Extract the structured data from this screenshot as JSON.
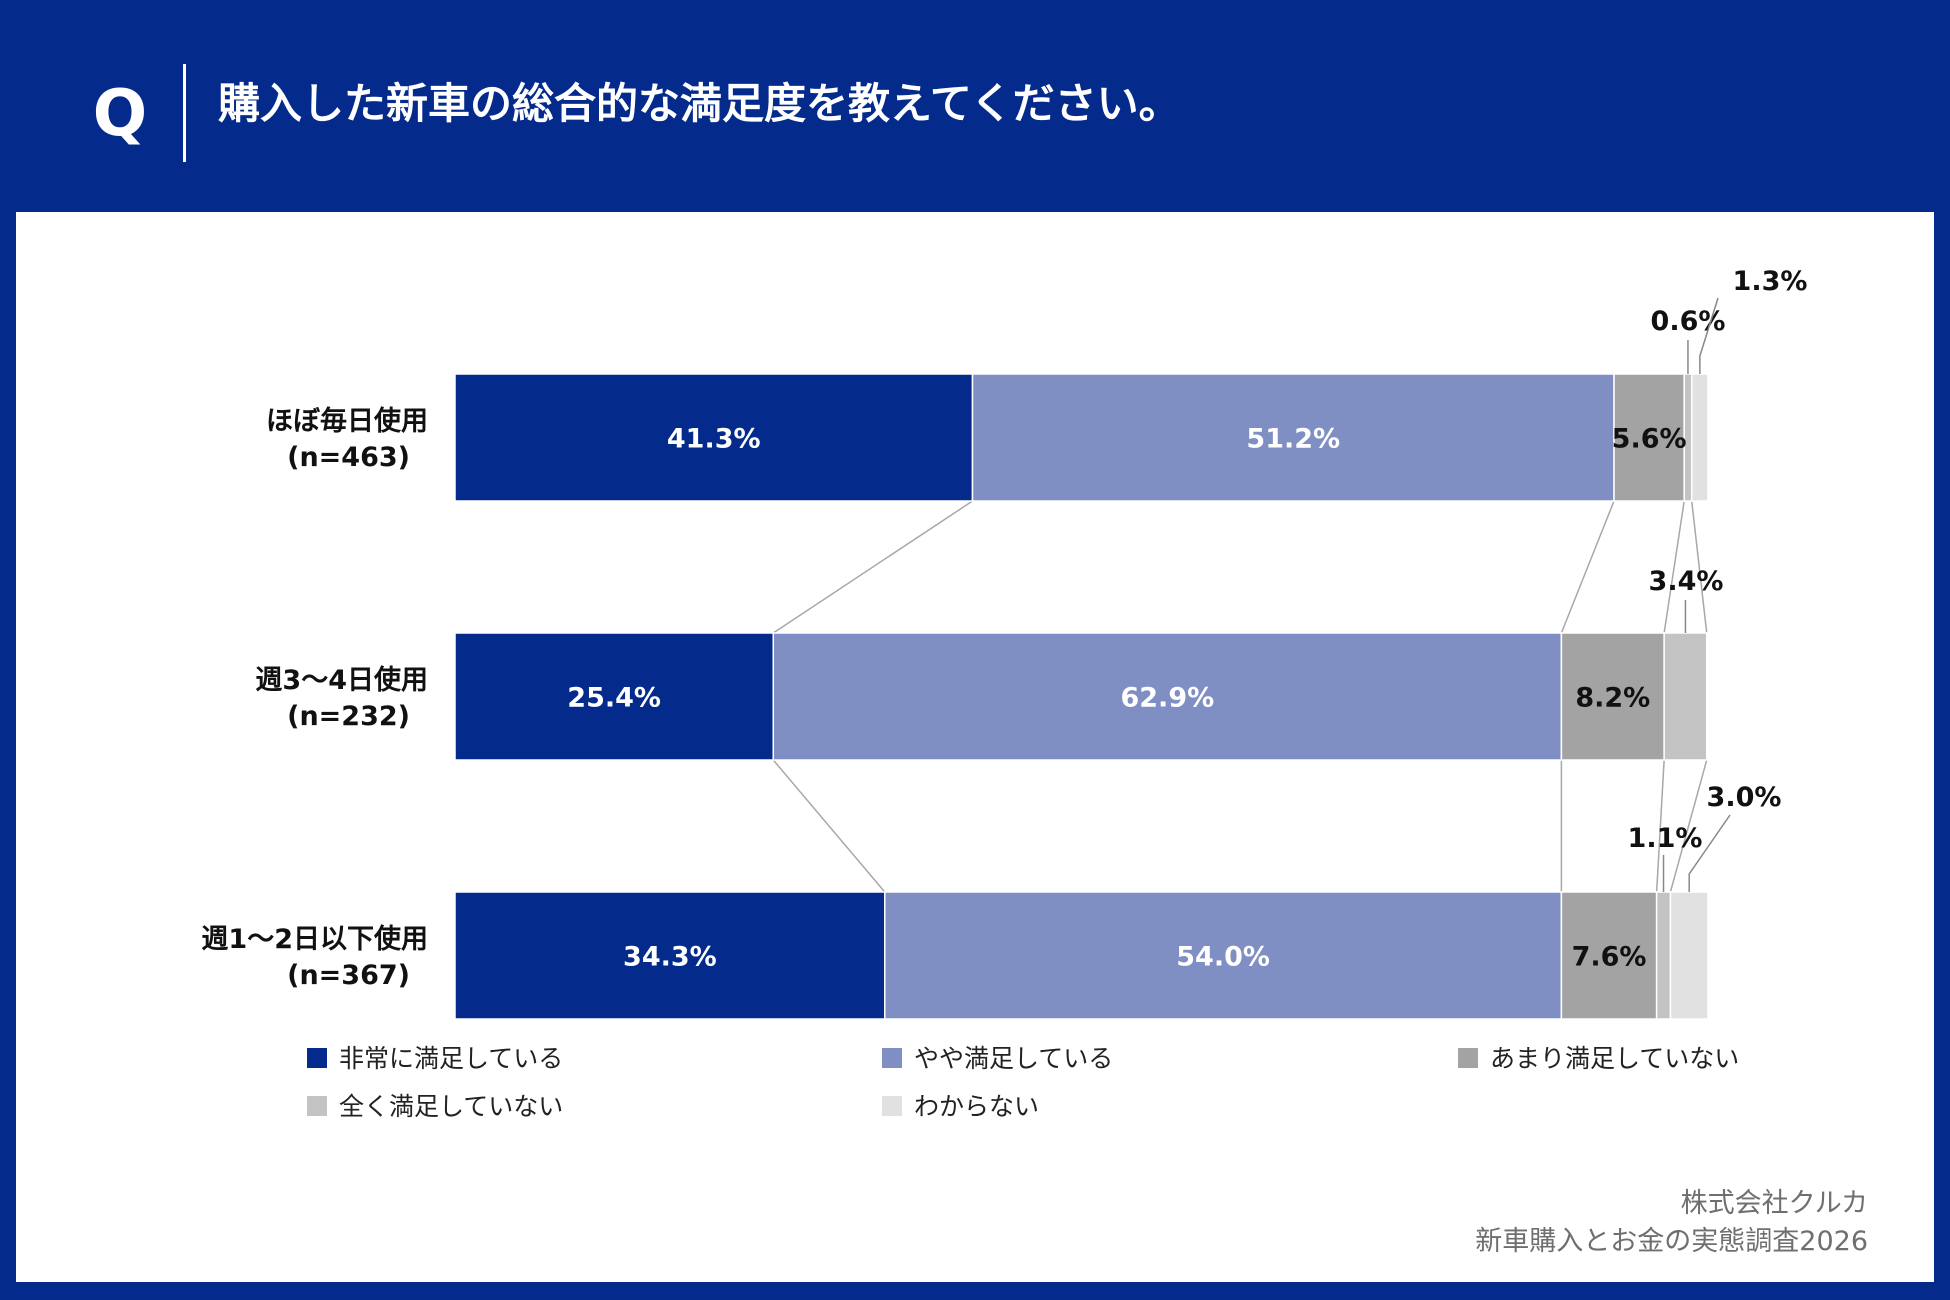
{
  "header": {
    "q_mark": "Q",
    "question": "購入した新車の総合的な満足度を教えてください。"
  },
  "source": {
    "line1": "株式会社クルカ",
    "line2": "新車購入とお金の実態調査2026"
  },
  "colors": {
    "background": "#042b8c",
    "panel": "#ffffff",
    "connector": "#a8a8a8"
  },
  "chart_data": {
    "type": "bar",
    "orientation": "horizontal",
    "stacked": true,
    "normalized": true,
    "categories": [
      {
        "line1": "ほぼ毎日使用",
        "line2": "(n=463)"
      },
      {
        "line1": "週3〜4日使用",
        "line2": "(n=232)"
      },
      {
        "line1": "週1〜2日以下使用",
        "line2": "(n=367)"
      }
    ],
    "series": [
      {
        "name": "非常に満足している",
        "color": "#042b8c",
        "label_color": "#ffffff",
        "values": [
          41.3,
          25.4,
          34.3
        ],
        "labels": [
          "41.3%",
          "25.4%",
          "34.3%"
        ]
      },
      {
        "name": "やや満足している",
        "color": "#7f8fc3",
        "label_color": "#ffffff",
        "values": [
          51.2,
          62.9,
          54.0
        ],
        "labels": [
          "51.2%",
          "62.9%",
          "54.0%"
        ]
      },
      {
        "name": "あまり満足していない",
        "color": "#a3a3a3",
        "label_color": "#111111",
        "values": [
          5.6,
          8.2,
          7.6
        ],
        "labels": [
          "5.6%",
          "8.2%",
          "7.6%"
        ]
      },
      {
        "name": "全く満足していない",
        "color": "#c3c3c3",
        "label_color": "#111111",
        "values": [
          0.6,
          3.4,
          1.1
        ],
        "labels": [
          "0.6%",
          "3.4%",
          "1.1%"
        ]
      },
      {
        "name": "わからない",
        "color": "#e1e1e1",
        "label_color": "#111111",
        "values": [
          1.3,
          0.0,
          3.0
        ],
        "labels": [
          "1.3%",
          "",
          "3.0%"
        ]
      }
    ],
    "xlim": [
      0,
      100
    ],
    "grid": false,
    "legend_position": "bottom"
  }
}
